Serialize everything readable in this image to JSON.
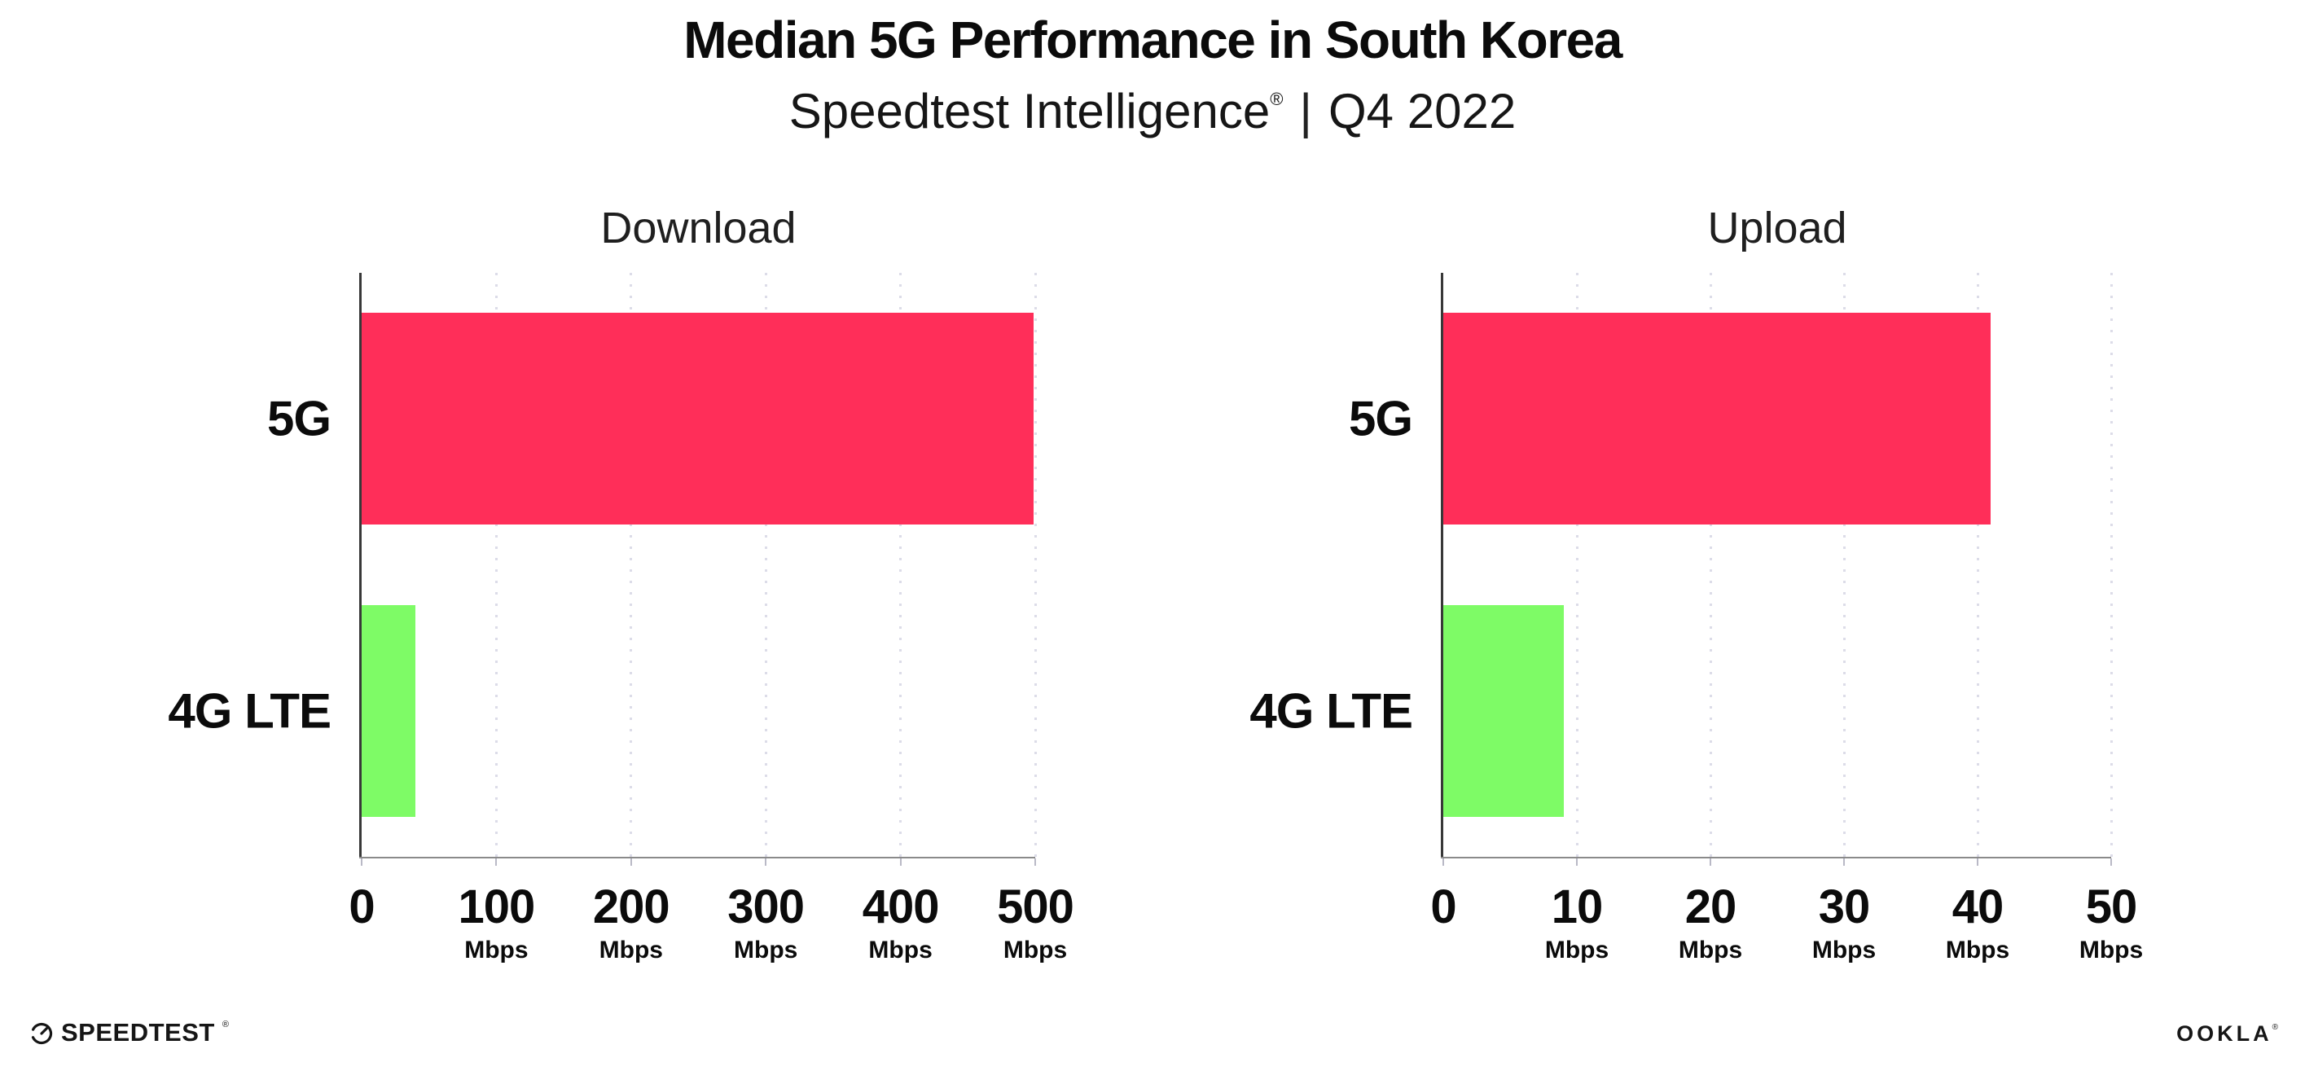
{
  "header": {
    "title": "Median 5G Performance in South Korea",
    "subtitle_brand": "Speedtest Intelligence",
    "subtitle_reg": "®",
    "subtitle_separator": "|",
    "subtitle_period": "Q4 2022"
  },
  "chart_data": [
    {
      "type": "bar",
      "orientation": "horizontal",
      "title": "Download",
      "categories": [
        "5G",
        "4G LTE"
      ],
      "values": [
        499,
        40
      ],
      "unit": "Mbps",
      "xlim": [
        0,
        500
      ],
      "xticks": [
        0,
        100,
        200,
        300,
        400,
        500
      ],
      "tick_unit_label": "Mbps",
      "grid": "dotted-vertical",
      "legend": "none",
      "bar_colors": [
        "#FF2E59",
        "#7EFB66"
      ]
    },
    {
      "type": "bar",
      "orientation": "horizontal",
      "title": "Upload",
      "categories": [
        "5G",
        "4G LTE"
      ],
      "values": [
        41,
        9
      ],
      "unit": "Mbps",
      "xlim": [
        0,
        50
      ],
      "xticks": [
        0,
        10,
        20,
        30,
        40,
        50
      ],
      "tick_unit_label": "Mbps",
      "grid": "dotted-vertical",
      "legend": "none",
      "bar_colors": [
        "#FF2E59",
        "#7EFB66"
      ]
    }
  ],
  "footer": {
    "speedtest_icon": "gauge-icon",
    "speedtest_wordmark": "SPEEDTEST",
    "speedtest_reg": "®",
    "ookla_wordmark": "OOKLA",
    "ookla_reg": "®"
  },
  "colors": {
    "bar_5g": "#FF2E59",
    "bar_4g_lte": "#7EFB66",
    "text": "#111111",
    "gridline": "#DCDCE8",
    "axis_baseline": "#8A8A8A",
    "axis_y": "#383838",
    "background": "#FFFFFF"
  }
}
